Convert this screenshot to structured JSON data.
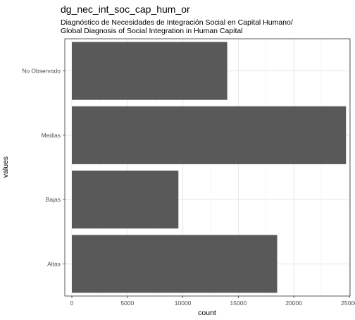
{
  "chart_data": {
    "type": "bar",
    "orientation": "horizontal",
    "title": "dg_nec_int_soc_cap_hum_or",
    "subtitle_lines": [
      "Diagnóstico de Necesidades de Integración Social en Capital Humano/",
      "Global Diagnosis of Social Integration in Human Capital"
    ],
    "xlabel": "count",
    "ylabel": "values",
    "categories": [
      "No Observado",
      "Medias",
      "Bajas",
      "Altas"
    ],
    "values": [
      14000,
      24700,
      9600,
      18500
    ],
    "xlim": [
      0,
      25700
    ],
    "xticks": [
      0,
      5000,
      10000,
      15000,
      20000,
      25000
    ],
    "grid": true,
    "bar_color": "#595959"
  }
}
